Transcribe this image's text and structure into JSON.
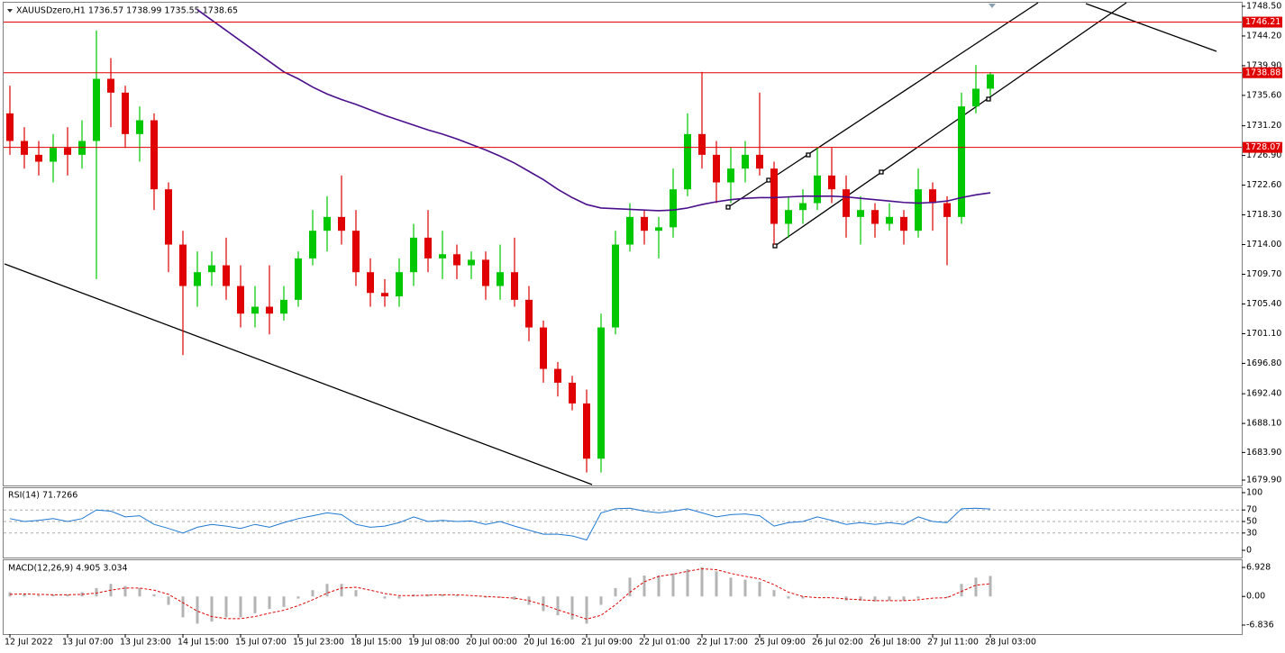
{
  "chart_data": [
    {
      "type": "candlestick",
      "title": "XAUUSDzero,H1  1736.57 1738.99 1735.55 1738.65",
      "categories": [
        "12 Jul 2022",
        null,
        null,
        null,
        "13 Jul 07:00",
        null,
        null,
        null,
        "13 Jul 23:00",
        null,
        null,
        null,
        "14 Jul 15:00",
        null,
        null,
        null,
        "15 Jul 07:00",
        null,
        null,
        null,
        "15 Jul 23:00",
        null,
        null,
        null,
        "18 Jul 15:00",
        null,
        null,
        null,
        "19 Jul 08:00",
        null,
        null,
        null,
        "20 Jul 00:00",
        null,
        null,
        null,
        "20 Jul 16:00",
        null,
        null,
        null,
        "21 Jul 09:00",
        null,
        null,
        null,
        "22 Jul 01:00",
        null,
        null,
        null,
        "22 Jul 17:00",
        null,
        null,
        null,
        "25 Jul 09:00",
        null,
        null,
        null,
        "26 Jul 02:00",
        null,
        null,
        null,
        "26 Jul 18:00",
        null,
        null,
        null,
        "27 Jul 11:00",
        null,
        null,
        null,
        "28 Jul 03:00"
      ],
      "open": [
        1733,
        1729,
        1727,
        1726,
        1728,
        1727,
        1729,
        1738,
        1736,
        1730,
        1732,
        1722,
        1714,
        1708,
        1710,
        1711,
        1708,
        1704,
        1705,
        1704,
        1706,
        1712,
        1716,
        1718,
        1716,
        1710,
        1707,
        1706.5,
        1710,
        1715,
        1712,
        1712.6,
        1711,
        1711.8,
        1708,
        1710,
        1706,
        1702,
        1696,
        1694,
        1691,
        1683,
        1702,
        1714,
        1718,
        1716,
        1716.5,
        1722,
        1730,
        1727,
        1723,
        1725,
        1727,
        1725,
        1717,
        1719,
        1720,
        1724,
        1722,
        1718,
        1719,
        1717,
        1718,
        1716,
        1722,
        1720,
        1718,
        1734,
        1736.57
      ],
      "high": [
        1737,
        1731,
        1729,
        1730,
        1731,
        1732,
        1745,
        1741,
        1737,
        1734,
        1733,
        1723,
        1716,
        1713,
        1713,
        1715,
        1711,
        1708,
        1711,
        1708,
        1713,
        1719,
        1721,
        1724,
        1719,
        1712,
        1709,
        1712,
        1717,
        1719,
        1716,
        1714,
        1713,
        1713,
        1714,
        1715,
        1708,
        1703,
        1697,
        1695,
        1693,
        1704,
        1716,
        1720,
        1719,
        1718,
        1725,
        1733,
        1739,
        1729,
        1728,
        1729,
        1736,
        1726,
        1721,
        1722,
        1728,
        1728,
        1724,
        1721,
        1720,
        1720,
        1719,
        1725,
        1723,
        1721,
        1736,
        1740,
        1738.99
      ],
      "low": [
        1727,
        1725,
        1724,
        1723,
        1724,
        1725,
        1709,
        1731,
        1728,
        1726,
        1719,
        1710,
        1698,
        1705,
        1708,
        1706,
        1702,
        1702,
        1701,
        1703,
        1705,
        1711,
        1713,
        1714,
        1708,
        1705,
        1705,
        1705,
        1708,
        1710,
        1709,
        1709,
        1709,
        1706,
        1706,
        1705,
        1700,
        1694,
        1692,
        1690,
        1681,
        1681,
        1701,
        1713,
        1714,
        1712,
        1715,
        1721,
        1725,
        1720,
        1720,
        1723,
        1724,
        1714,
        1715,
        1717,
        1719,
        1720,
        1715,
        1714,
        1715,
        1716,
        1714,
        1715,
        1716,
        1711,
        1717,
        1733,
        1735.55
      ],
      "close": [
        1729,
        1727,
        1726,
        1728,
        1727,
        1729,
        1738,
        1736,
        1730,
        1732,
        1722,
        1714,
        1708,
        1710,
        1711,
        1708,
        1704,
        1705,
        1704,
        1706,
        1712,
        1716,
        1718,
        1716,
        1710,
        1707,
        1706.5,
        1710,
        1715,
        1712,
        1712.6,
        1711,
        1711.8,
        1708,
        1710,
        1706,
        1702,
        1696,
        1694,
        1691,
        1683,
        1702,
        1714,
        1718,
        1716,
        1716.5,
        1722,
        1730,
        1727,
        1723,
        1725,
        1727,
        1725,
        1717,
        1719,
        1720,
        1724,
        1722,
        1718,
        1719,
        1717,
        1718,
        1716,
        1722,
        1720,
        1718,
        1734,
        1736.57,
        1738.65
      ],
      "up_color": "#00c800",
      "down_color": "#e00000",
      "ma": {
        "color": "#4b0f8c",
        "values": [
          null,
          null,
          null,
          null,
          null,
          null,
          null,
          null,
          null,
          null,
          null,
          null,
          null,
          1748,
          1746.5,
          1745,
          1743.5,
          1742,
          1740.5,
          1739,
          1738,
          1736.8,
          1735.8,
          1735,
          1734.3,
          1733.5,
          1732.7,
          1732,
          1731.3,
          1730.6,
          1730,
          1729.3,
          1728.5,
          1727.7,
          1726.8,
          1725.8,
          1724.6,
          1723.4,
          1722,
          1720.8,
          1719.8,
          1719.3,
          1719.2,
          1719.1,
          1719,
          1718.9,
          1719,
          1719.3,
          1719.8,
          1720.2,
          1720.5,
          1720.7,
          1720.8,
          1720.8,
          1720.9,
          1721,
          1721,
          1721,
          1720.9,
          1720.7,
          1720.5,
          1720.3,
          1720.1,
          1720,
          1720.1,
          1720.3,
          1720.8,
          1721.2,
          1721.5
        ]
      },
      "levels": [
        1746.21,
        1738.88,
        1728.07
      ],
      "level_color": "#e00000",
      "ylim": [
        1679.25,
        1749.02
      ],
      "yticks": [
        {
          "value": 1748.5,
          "label": "1748.50"
        },
        {
          "value": 1744.2,
          "label": "1744.20"
        },
        {
          "value": 1739.9,
          "label": "1739.90"
        },
        {
          "value": 1735.6,
          "label": "1735.60"
        },
        {
          "value": 1731.2,
          "label": "1731.20"
        },
        {
          "value": 1726.9,
          "label": "1726.90"
        },
        {
          "value": 1722.6,
          "label": "1722.60"
        },
        {
          "value": 1718.3,
          "label": "1718.30"
        },
        {
          "value": 1714,
          "label": "1714.00"
        },
        {
          "value": 1709.7,
          "label": "1709.70"
        },
        {
          "value": 1705.4,
          "label": "1705.40"
        },
        {
          "value": 1701.1,
          "label": "1701.10"
        },
        {
          "value": 1696.8,
          "label": "1696.80"
        },
        {
          "value": 1692.4,
          "label": "1692.40"
        },
        {
          "value": 1688.1,
          "label": "1688.10"
        },
        {
          "value": 1683.9,
          "label": "1683.90"
        },
        {
          "value": 1679.9,
          "label": "1679.90"
        }
      ]
    },
    {
      "type": "line",
      "title": "RSI(14) 71.7266",
      "color": "#1e78d2",
      "values": [
        55,
        50,
        52,
        55,
        50,
        55,
        70,
        68,
        58,
        60,
        45,
        38,
        30,
        40,
        45,
        42,
        38,
        45,
        40,
        48,
        55,
        60,
        65,
        62,
        45,
        40,
        42,
        48,
        58,
        50,
        52,
        50,
        51,
        45,
        50,
        42,
        35,
        28,
        28,
        25,
        18,
        65,
        72,
        73,
        68,
        65,
        68,
        72,
        65,
        58,
        62,
        63,
        60,
        42,
        48,
        50,
        58,
        52,
        45,
        48,
        45,
        48,
        45,
        58,
        50,
        48,
        72,
        73,
        71.7266
      ],
      "ylim": [
        -7.8,
        106.25
      ],
      "yticks": [
        100,
        70,
        50,
        30,
        0
      ],
      "levels": [
        70,
        50,
        30
      ]
    },
    {
      "type": "bar",
      "title": "MACD(12,26,9) 4.905 3.034",
      "color": "#b4b4b4",
      "values": [
        1,
        0.5,
        0.3,
        0.5,
        0.5,
        1,
        2,
        3,
        2.5,
        2,
        0.5,
        -2,
        -5,
        -6.5,
        -6,
        -5,
        -5,
        -4,
        -3,
        -2.5,
        -0.5,
        1.5,
        3,
        3,
        1.5,
        0,
        -0.5,
        -0.5,
        0.5,
        0.5,
        0.5,
        0.3,
        0,
        -0.3,
        -0.3,
        -0.8,
        -2,
        -3.5,
        -4.5,
        -5.5,
        -6.5,
        -2,
        2,
        4.5,
        5,
        5,
        5.5,
        6.5,
        7,
        6,
        4.5,
        4,
        3.5,
        1.5,
        -0.5,
        -0.5,
        0,
        0,
        -1,
        -1,
        -1.2,
        -1,
        -1,
        -0.5,
        0,
        -0.3,
        3,
        4.5,
        4.905
      ],
      "signal": {
        "color": "#e00000",
        "values": [
          0.5,
          0.6,
          0.5,
          0.4,
          0.4,
          0.5,
          0.8,
          1.5,
          2,
          2,
          1.5,
          0.5,
          -1.5,
          -3.5,
          -4.8,
          -5.3,
          -5.3,
          -4.8,
          -4,
          -3.3,
          -2.2,
          -0.8,
          0.8,
          2,
          2.2,
          1.5,
          0.7,
          0.2,
          0.2,
          0.3,
          0.4,
          0.4,
          0.2,
          0,
          -0.2,
          -0.4,
          -1,
          -2,
          -3.2,
          -4.3,
          -5.4,
          -4.5,
          -2,
          1,
          3.5,
          4.8,
          5.3,
          6,
          6.6,
          6.4,
          5.5,
          4.8,
          4.2,
          2.8,
          1,
          0,
          -0.3,
          -0.3,
          -0.6,
          -0.8,
          -1,
          -1,
          -1,
          -0.8,
          -0.4,
          -0.3,
          1.2,
          2.7,
          3.034
        ]
      },
      "ylim": [
        -8.56,
        8.22
      ],
      "yticks": [
        6.928,
        {
          "value": 0,
          "label": "0.00"
        },
        -6.836
      ]
    }
  ]
}
